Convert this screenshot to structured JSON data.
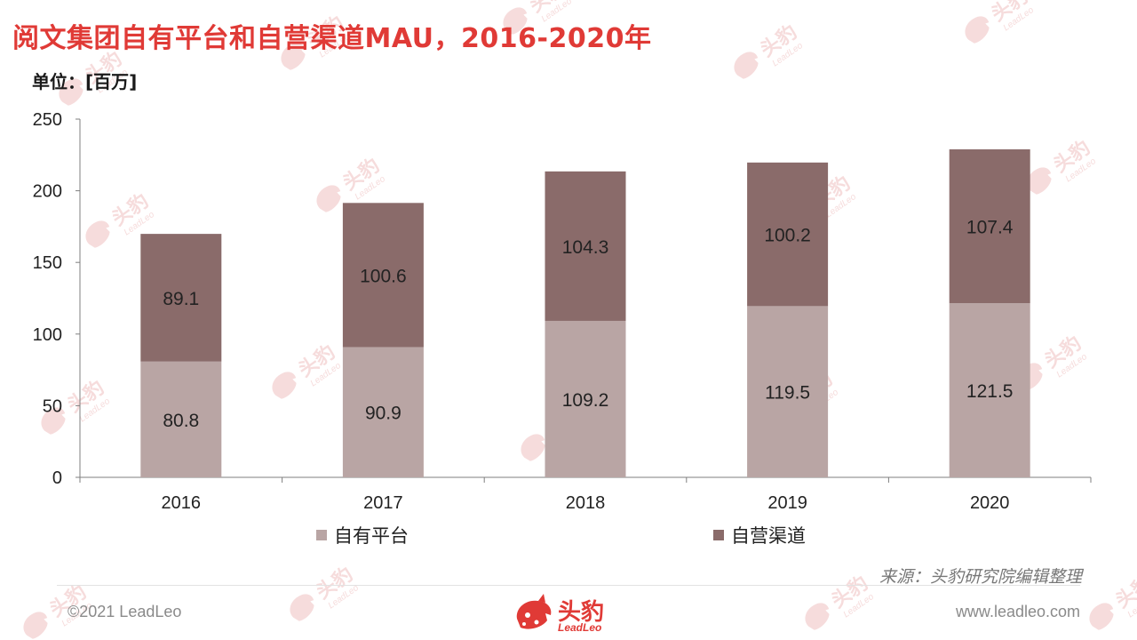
{
  "title": "阅文集团自有平台和自营渠道MAU，2016-2020年",
  "unit_label": "单位：[百万]",
  "source": "来源：头豹研究院编辑整理",
  "copyright": "©2021 LeadLeo",
  "website": "www.leadleo.com",
  "logo": {
    "cn": "头豹",
    "en": "LeadLeo"
  },
  "watermark": {
    "cn": "头豹",
    "en": "LeadLeo"
  },
  "colors": {
    "title": "#e03a36",
    "series_bottom": "#b9a5a4",
    "series_top": "#8a6b6a",
    "axis": "#7f7f7f",
    "watermark": "#f6dcdc"
  },
  "chart_data": {
    "type": "bar",
    "stacked": true,
    "categories": [
      "2016",
      "2017",
      "2018",
      "2019",
      "2020"
    ],
    "series": [
      {
        "name": "自有平台",
        "values": [
          80.8,
          90.9,
          109.2,
          119.5,
          121.5
        ]
      },
      {
        "name": "自营渠道",
        "values": [
          89.1,
          100.6,
          104.3,
          100.2,
          107.4
        ]
      }
    ],
    "yticks": [
      "0",
      "50",
      "100",
      "150",
      "200",
      "250"
    ],
    "ylim": [
      0,
      250
    ],
    "grid": false,
    "legend_position": "bottom"
  }
}
